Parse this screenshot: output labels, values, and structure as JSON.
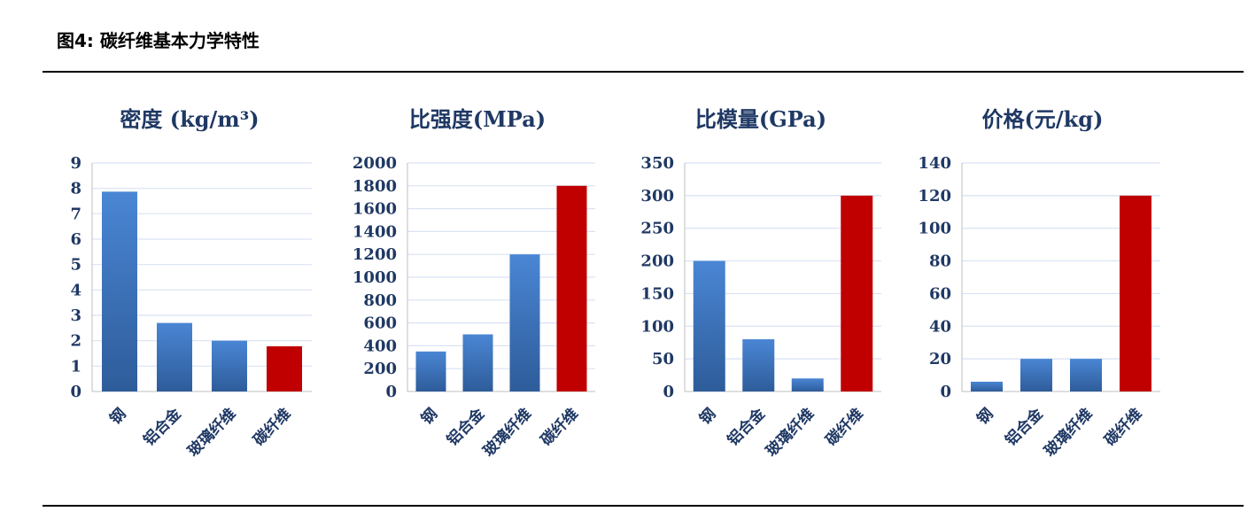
{
  "figure": {
    "title": "图4: 碳纤维基本力学特性"
  },
  "colors": {
    "normal_top": "#4a86d4",
    "normal_bottom": "#2e5c9a",
    "highlight": "#c00000"
  },
  "chart_data": [
    {
      "type": "bar",
      "title": "密度 (kg/m³)",
      "categories": [
        "钢",
        "铝合金",
        "玻璃纤维",
        "碳纤维"
      ],
      "values": [
        7.87,
        2.7,
        2.0,
        1.78
      ],
      "ylim": [
        0,
        9
      ],
      "yticks": [
        0,
        1,
        2,
        3,
        4,
        5,
        6,
        7,
        8,
        9
      ],
      "highlight_index": 3,
      "grid": true
    },
    {
      "type": "bar",
      "title": "比强度(MPa)",
      "categories": [
        "钢",
        "铝合金",
        "玻璃纤维",
        "碳纤维"
      ],
      "values": [
        350,
        500,
        1200,
        1800
      ],
      "ylim": [
        0,
        2000
      ],
      "yticks": [
        0,
        200,
        400,
        600,
        800,
        1000,
        1200,
        1400,
        1600,
        1800,
        2000
      ],
      "highlight_index": 3,
      "grid": true
    },
    {
      "type": "bar",
      "title": "比模量(GPa)",
      "categories": [
        "钢",
        "铝合金",
        "玻璃纤维",
        "碳纤维"
      ],
      "values": [
        200,
        80,
        20,
        300
      ],
      "ylim": [
        0,
        350
      ],
      "yticks": [
        0,
        50,
        100,
        150,
        200,
        250,
        300,
        350
      ],
      "highlight_index": 3,
      "grid": true
    },
    {
      "type": "bar",
      "title": "价格(元/kg)",
      "categories": [
        "钢",
        "铝合金",
        "玻璃纤维",
        "碳纤维"
      ],
      "values": [
        6,
        20,
        20,
        120
      ],
      "ylim": [
        0,
        140
      ],
      "yticks": [
        0,
        20,
        40,
        60,
        80,
        100,
        120,
        140
      ],
      "highlight_index": 3,
      "grid": true
    }
  ]
}
